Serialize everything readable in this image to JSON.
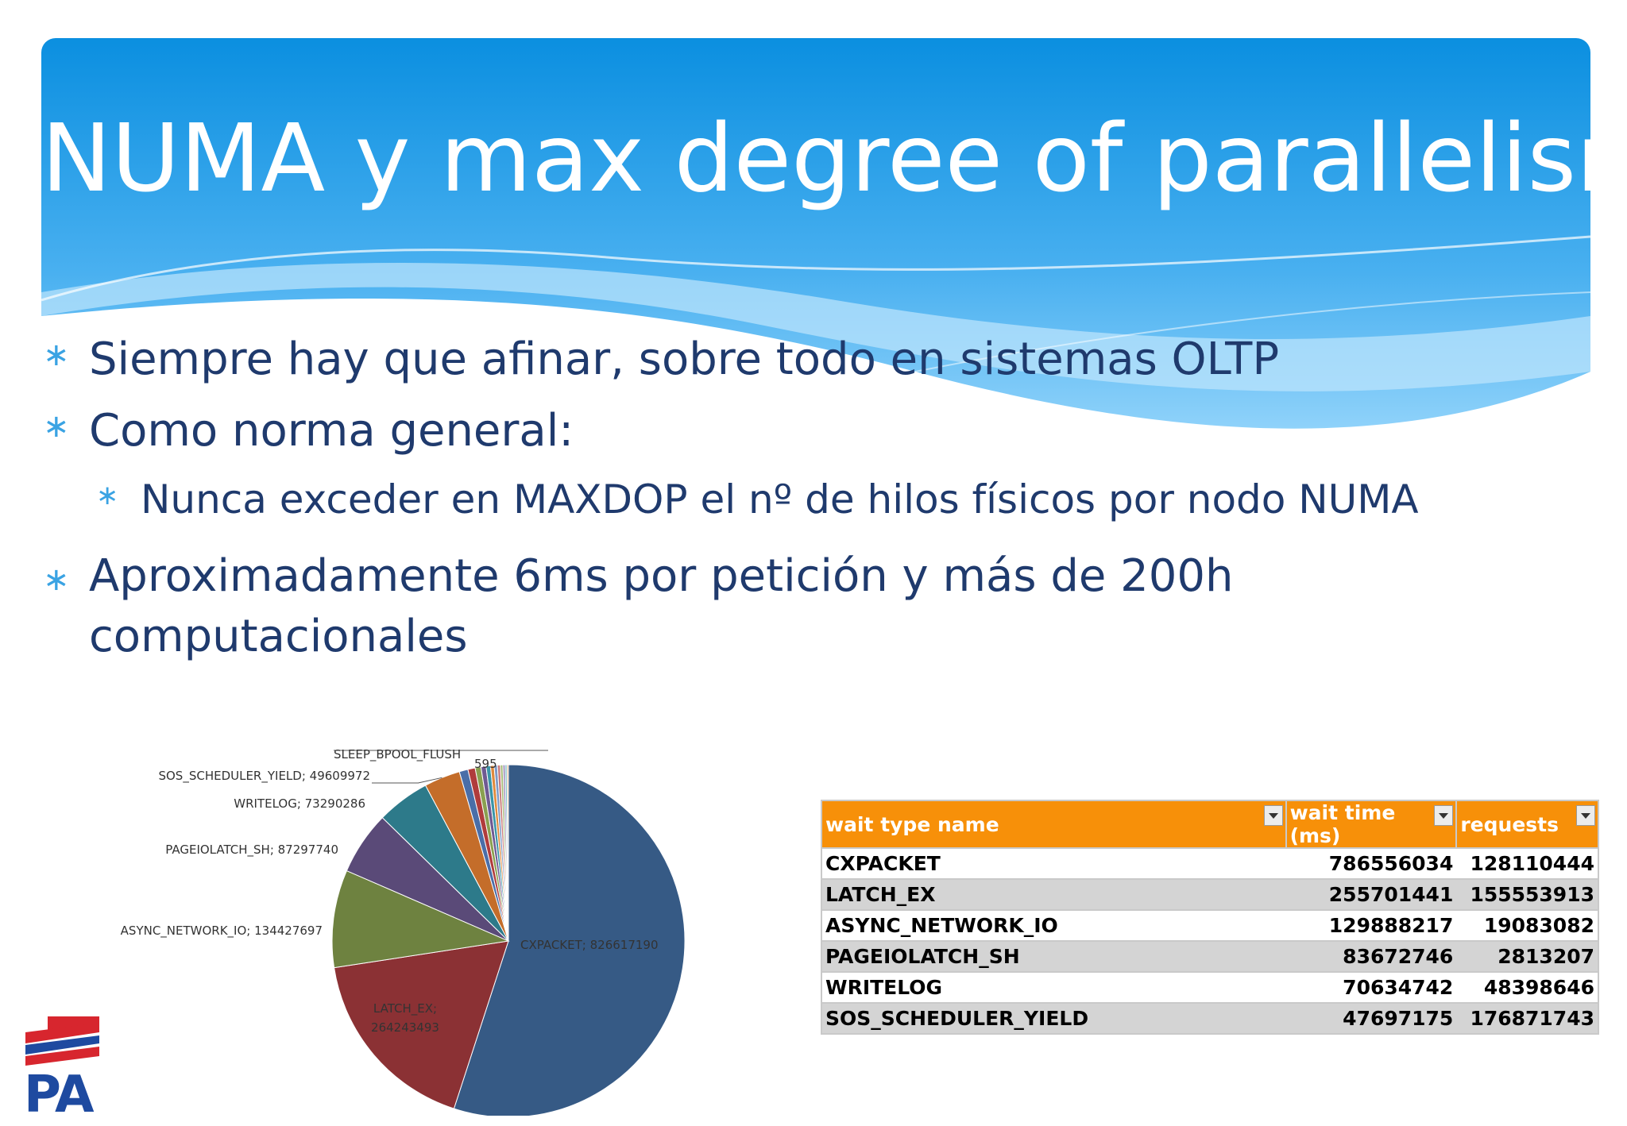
{
  "slide": {
    "title": "NUMA y max degree of parallelism",
    "bullets": [
      "Siempre hay que afinar, sobre todo en sistemas OLTP",
      "Como norma general:",
      "Nunca exceder en MAXDOP el nº de hilos físicos por nodo NUMA",
      "Aproximadamente 6ms por petición y más de 200h computacionales"
    ],
    "bullet_glyph": "∗",
    "logo_text": "PA"
  },
  "colors": {
    "header_top": "#0b8fe0",
    "header_bottom": "#5cbdf5",
    "title_text": "#ffffff",
    "body_text": "#1f3a6d",
    "bullet_mark": "#3aa3e3",
    "table_header": "#f79009"
  },
  "chart_data": {
    "type": "pie",
    "title": "",
    "slices": [
      {
        "label": "CXPACKET",
        "value": 826617190,
        "display": "CXPACKET; 826617190",
        "color": "#365a85"
      },
      {
        "label": "LATCH_EX",
        "value": 264243493,
        "display": "LATCH_EX;",
        "display2": "264243493",
        "color": "#8b3134"
      },
      {
        "label": "ASYNC_NETWORK_IO",
        "value": 134427697,
        "display": "ASYNC_NETWORK_IO;  134427697",
        "color": "#6e8240"
      },
      {
        "label": "PAGEIOLATCH_SH",
        "value": 87297740,
        "display": "PAGEIOLATCH_SH;  87297740",
        "color": "#5a4a78"
      },
      {
        "label": "WRITELOG",
        "value": 73290286,
        "display": "WRITELOG;  73290286",
        "color": "#2d7a8a"
      },
      {
        "label": "SOS_SCHEDULER_YIELD",
        "value": 49609972,
        "display": "SOS_SCHEDULER_YIELD;  49609972",
        "color": "#c46d2a"
      },
      {
        "label": "",
        "value": 12000000,
        "display": "",
        "color": "#4a6ea8"
      },
      {
        "label": "",
        "value": 10000000,
        "display": "",
        "color": "#b03c3c"
      },
      {
        "label": "",
        "value": 8000000,
        "display": "",
        "color": "#8aa050"
      },
      {
        "label": "",
        "value": 7000000,
        "display": "",
        "color": "#6f5a92"
      },
      {
        "label": "",
        "value": 6000000,
        "display": "",
        "color": "#3a95a8"
      },
      {
        "label": "",
        "value": 5000000,
        "display": "",
        "color": "#e08a3c"
      },
      {
        "label": "",
        "value": 4500000,
        "display": "",
        "color": "#7d9ac6"
      },
      {
        "label": "",
        "value": 4000000,
        "display": "",
        "color": "#c97a7a"
      },
      {
        "label": "",
        "value": 3500000,
        "display": "",
        "color": "#a8bc7a"
      },
      {
        "label": "",
        "value": 3000000,
        "display": "",
        "color": "#9a88b8"
      },
      {
        "label": "",
        "value": 2500000,
        "display": "",
        "color": "#6bb4c4"
      },
      {
        "label": "",
        "value": 2000000,
        "display": "",
        "color": "#f0ae72"
      }
    ],
    "truncated_labels": [
      "SLEEP_BPOOL_FLUSH",
      "595"
    ]
  },
  "table": {
    "columns": [
      "wait type name",
      "wait time (ms)",
      "requests"
    ],
    "rows": [
      [
        "CXPACKET",
        "786556034",
        "128110444"
      ],
      [
        "LATCH_EX",
        "255701441",
        "155553913"
      ],
      [
        "ASYNC_NETWORK_IO",
        "129888217",
        "19083082"
      ],
      [
        "PAGEIOLATCH_SH",
        "83672746",
        "2813207"
      ],
      [
        "WRITELOG",
        "70634742",
        "48398646"
      ],
      [
        "SOS_SCHEDULER_YIELD",
        "47697175",
        "176871743"
      ]
    ]
  }
}
